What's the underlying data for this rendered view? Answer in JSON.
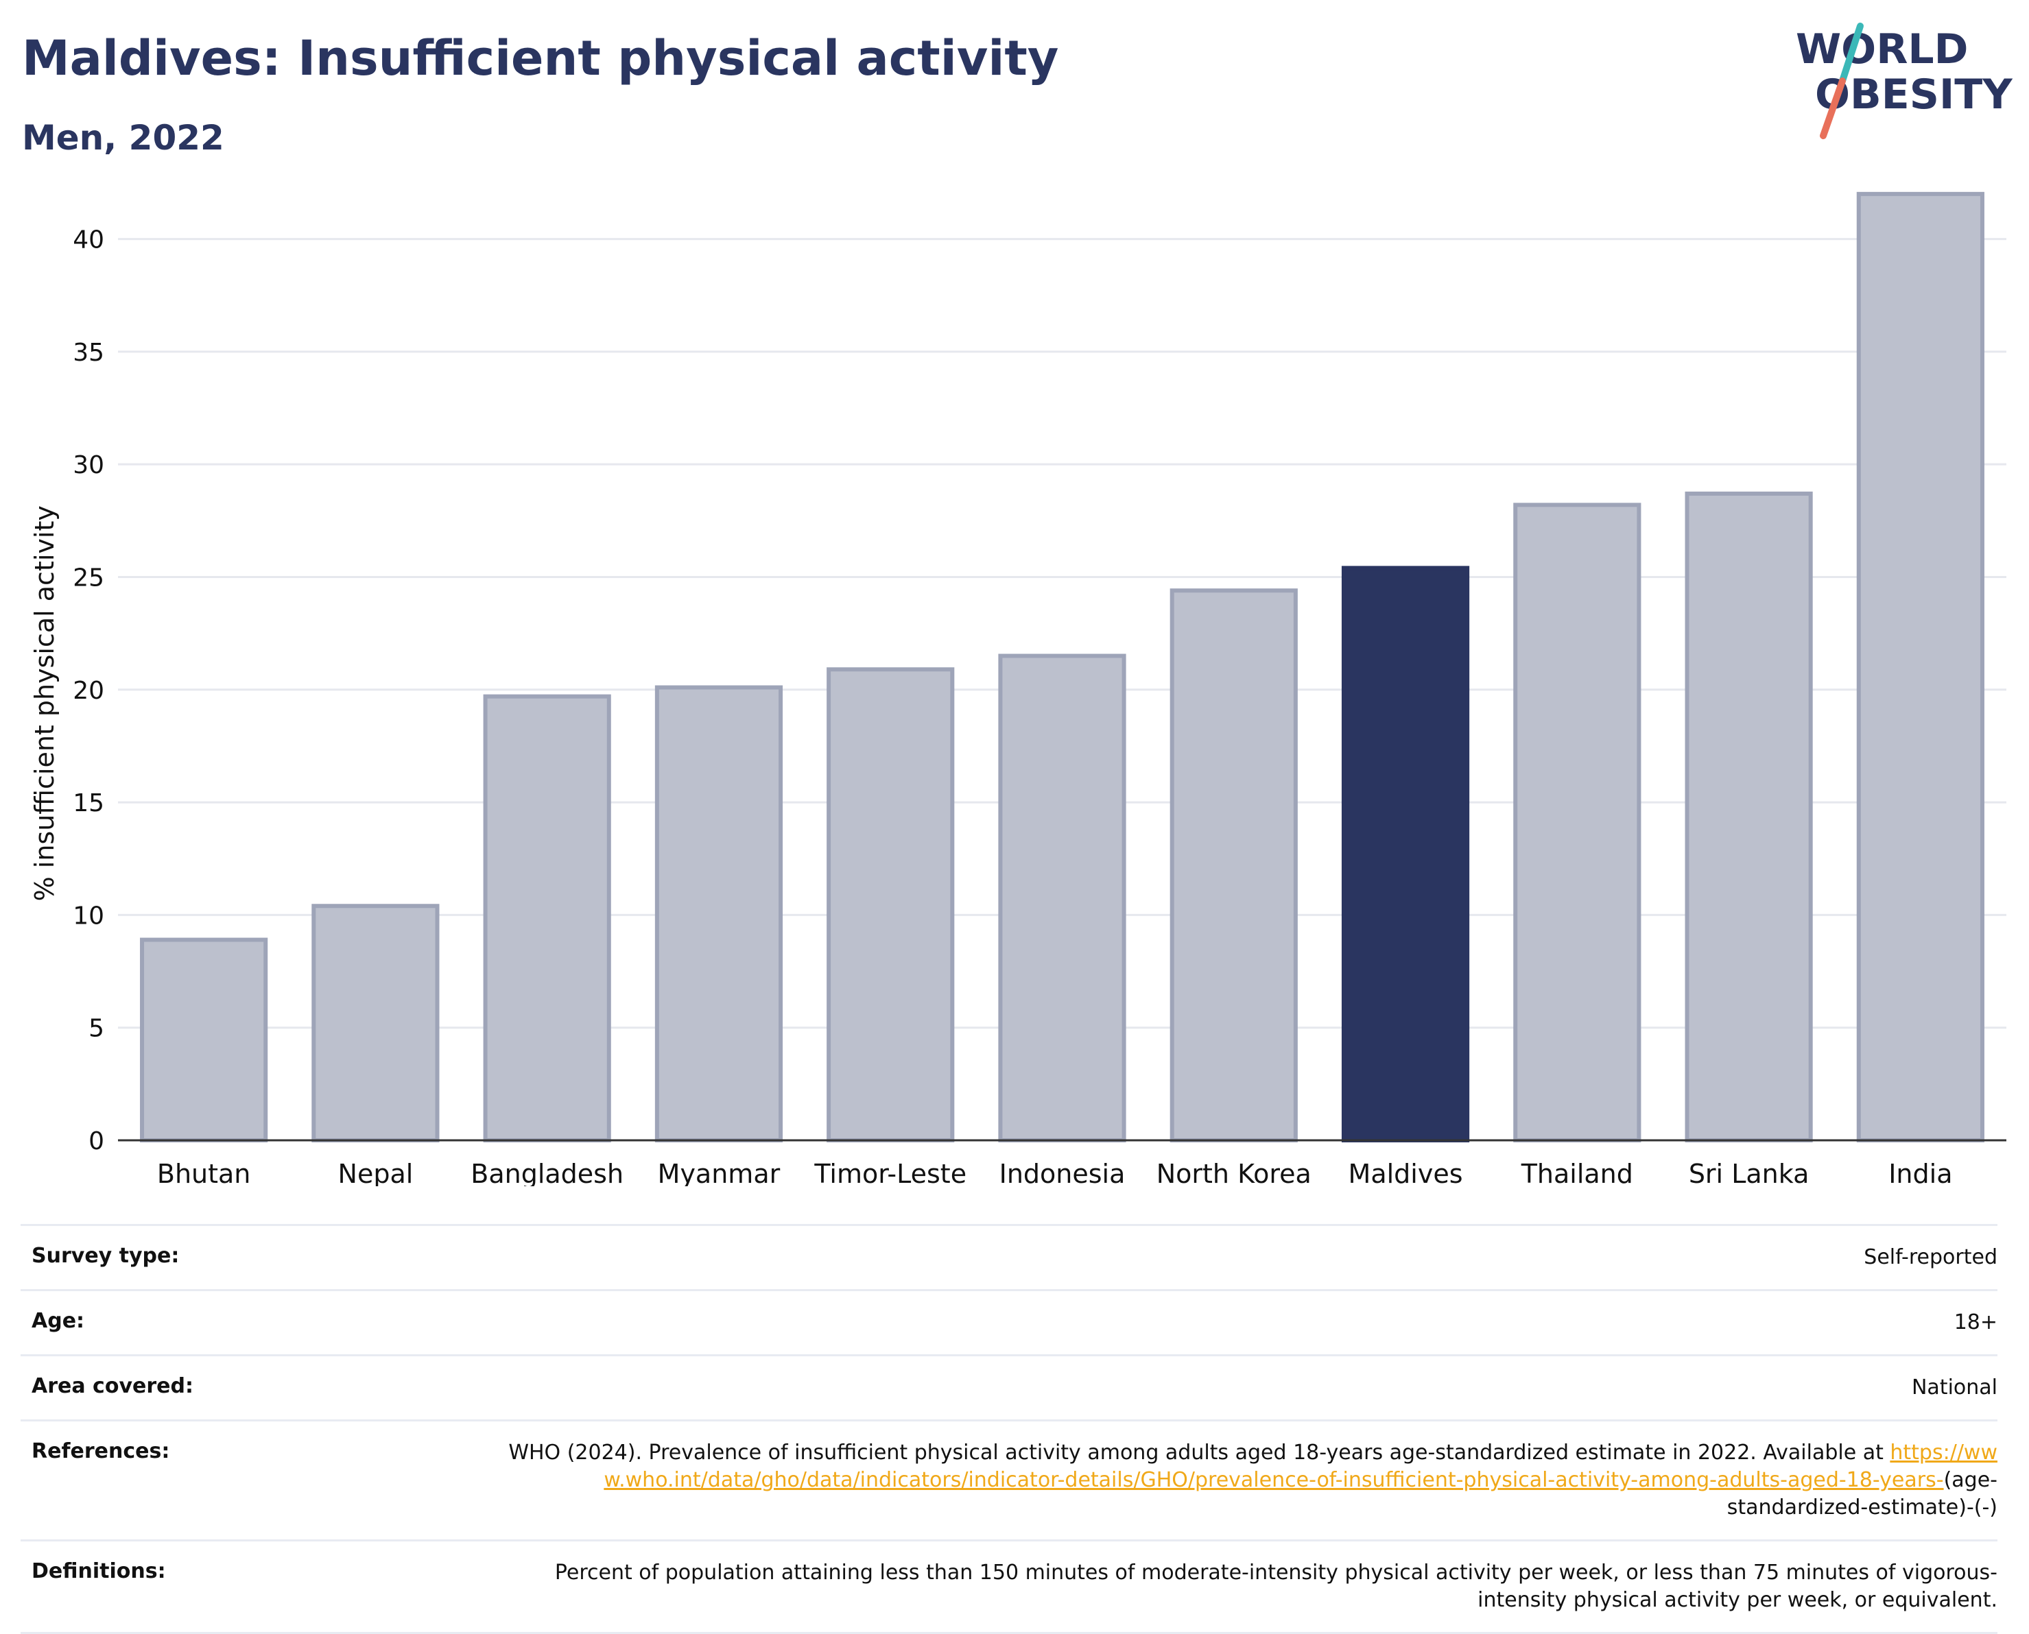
{
  "header": {
    "title": "Maldives: Insufficient physical activity",
    "subtitle": "Men, 2022"
  },
  "logo": {
    "line1": "WORLD",
    "line2": "OBESITY",
    "colors": {
      "text": "#2a3560",
      "slash_top": "#3bb8b8",
      "slash_bottom": "#e8705a"
    }
  },
  "chart_data": {
    "type": "bar",
    "title": "Maldives: Insufficient physical activity",
    "subtitle": "Men, 2022",
    "xlabel": "",
    "ylabel": "% insufficient physical activity",
    "ylim": [
      0,
      43
    ],
    "yticks": [
      0,
      5,
      10,
      15,
      20,
      25,
      30,
      35,
      40
    ],
    "grid": true,
    "highlight": "Maldives",
    "colors": {
      "default": "#bcc0cd",
      "default_edge": "#9ea4b8",
      "highlight": "#2a3560"
    },
    "categories": [
      "Bhutan",
      "Nepal",
      "Bangladesh",
      "Myanmar",
      "Timor-Leste",
      "Indonesia",
      "North Korea",
      "Maldives",
      "Thailand",
      "Sri Lanka",
      "India"
    ],
    "values": [
      8.9,
      10.4,
      19.7,
      20.1,
      20.9,
      21.5,
      24.4,
      25.4,
      28.2,
      28.7,
      42.0
    ]
  },
  "meta": [
    {
      "label": "Survey type:",
      "value": "Self-reported"
    },
    {
      "label": "Age:",
      "value": "18+"
    },
    {
      "label": "Area covered:",
      "value": "National"
    },
    {
      "label": "References:",
      "value": "WHO (2024). Prevalence of insufficient physical activity among adults aged 18-years age-standardized estimate in 2022. Available at ",
      "link": "https://www.who.int/data/gho/data/indicators/indicator-details/GHO/prevalence-of-insufficient-physical-activity-among-adults-aged-18-years-",
      "suffix": "(age-standardized-estimate)-(-)"
    },
    {
      "label": "Definitions:",
      "value": "Percent of population attaining less than 150 minutes of moderate-intensity physical activity per week, or less than 75 minutes of vigorous-intensity physical activity per week, or equivalent."
    }
  ]
}
